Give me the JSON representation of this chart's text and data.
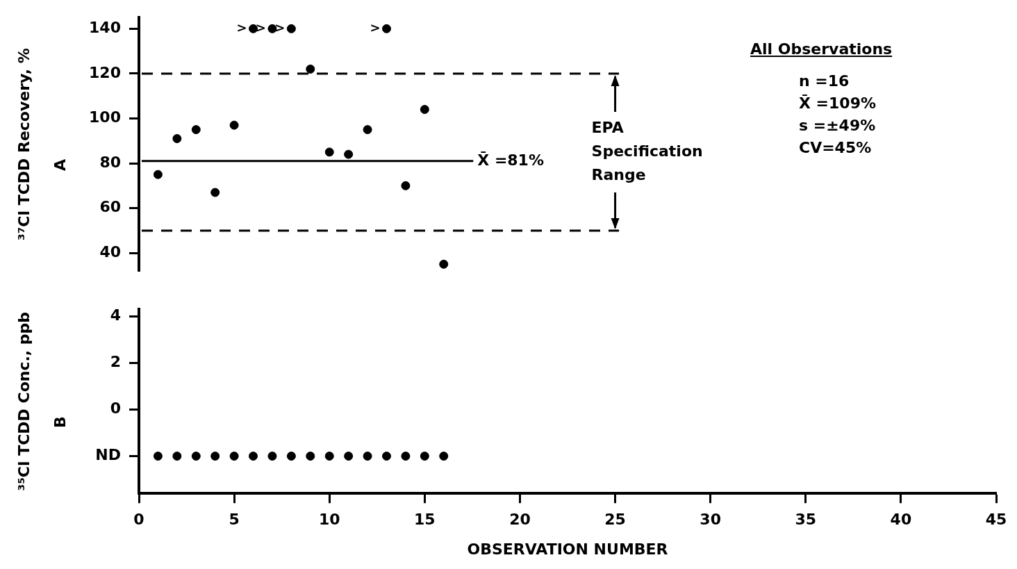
{
  "chart_data": [
    {
      "type": "scatter",
      "title": "A",
      "ylabel": "³⁷Cl TCDD Recovery, %",
      "x": [
        1,
        2,
        3,
        4,
        5,
        6,
        7,
        8,
        9,
        10,
        11,
        12,
        13,
        14,
        15,
        16
      ],
      "values": [
        75,
        91,
        95,
        67,
        97,
        140,
        140,
        140,
        122,
        85,
        84,
        95,
        140,
        70,
        104,
        35
      ],
      "color": "#000000",
      "marker": "circle",
      "xlim": [
        0,
        45
      ],
      "ylim": [
        32,
        145
      ],
      "yticks": [
        40,
        60,
        80,
        100,
        120,
        140
      ],
      "tick_labels": "y",
      "grid": false,
      "legend": false,
      "ref_lines": [
        {
          "axis": "y",
          "value": 120,
          "line_style": "dashed"
        },
        {
          "axis": "y",
          "value": 50,
          "line_style": "dashed"
        },
        {
          "axis": "y",
          "value": 81,
          "label": "X̄ =81%",
          "line_style": "solid"
        }
      ],
      "annotations": [
        {
          "text": ">",
          "x": 6,
          "y": 140
        },
        {
          "text": ">",
          "x": 7,
          "y": 140
        },
        {
          "text": ">",
          "x": 8,
          "y": 140
        },
        {
          "text": ">",
          "x": 13,
          "y": 140
        },
        {
          "text": "EPA Specification Range",
          "x": 25,
          "y": 120
        },
        "All Observations",
        "n =16",
        "X̄ =109%",
        "s =±49%",
        "CV=45%"
      ]
    },
    {
      "type": "scatter",
      "title": "B",
      "ylabel": "³⁵Cl TCDD Conc., ppb",
      "xlabel": "OBSERVATION NUMBER",
      "x": [
        1,
        2,
        3,
        4,
        5,
        6,
        7,
        8,
        9,
        10,
        11,
        12,
        13,
        14,
        15,
        16
      ],
      "values": [
        -2,
        -2,
        -2,
        -2,
        -2,
        -2,
        -2,
        -2,
        -2,
        -2,
        -2,
        -2,
        -2,
        -2,
        -2,
        -2
      ],
      "color": "#000000",
      "marker": "circle",
      "xlim": [
        0,
        45
      ],
      "xticks": [
        0,
        5,
        10,
        15,
        20,
        25,
        30,
        35,
        40,
        45
      ],
      "ylim": [
        -3.6,
        4.3
      ],
      "yticks": [
        {
          "value": -2,
          "label": "ND"
        },
        0,
        2,
        4
      ],
      "grid": false,
      "legend": false
    }
  ]
}
